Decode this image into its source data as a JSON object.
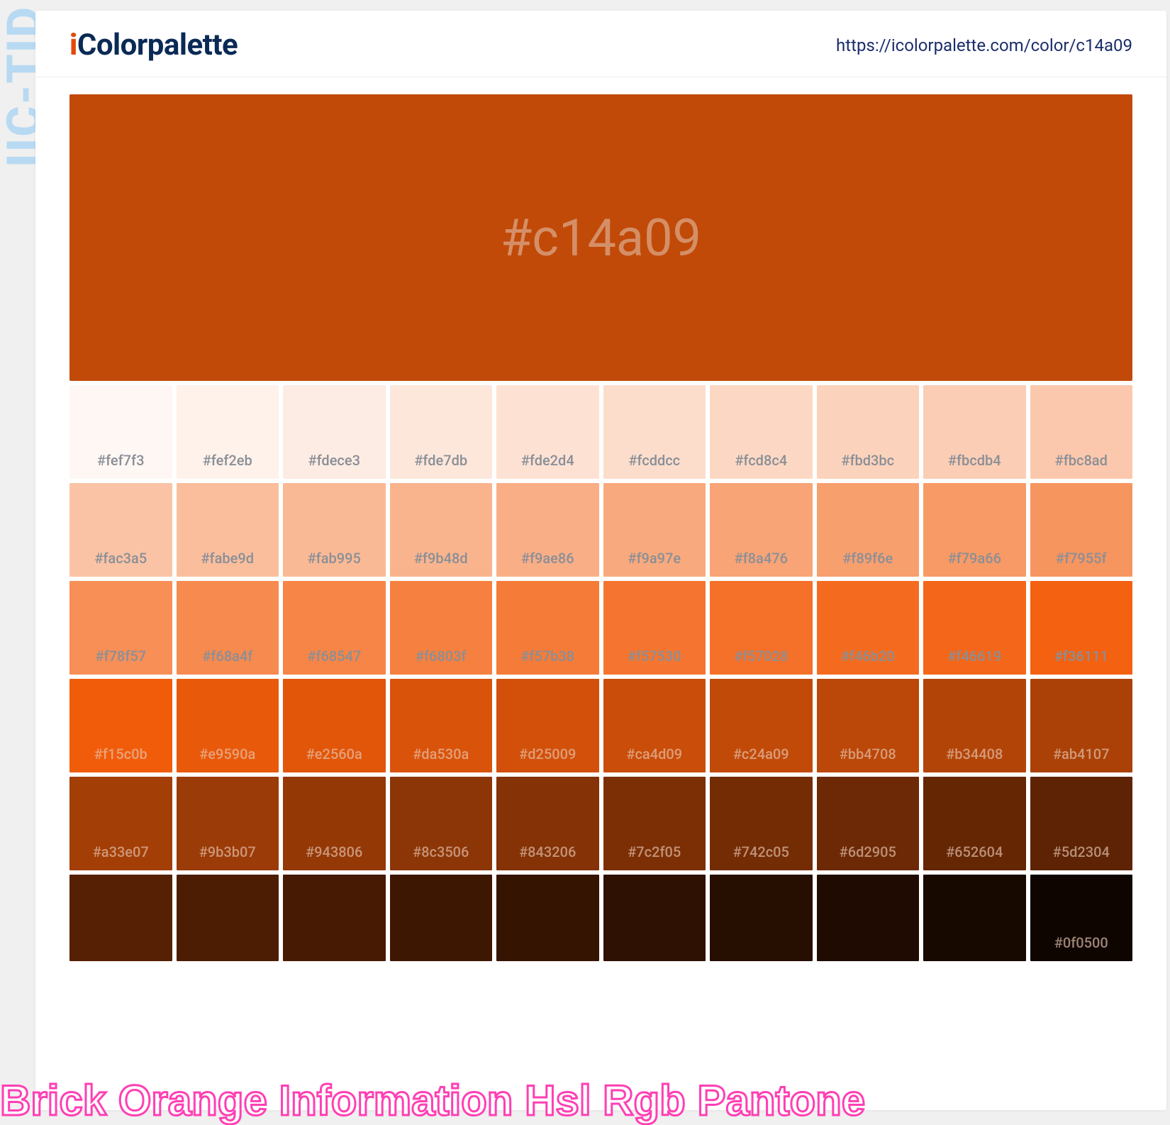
{
  "side_label": "IIC-TID",
  "logo": {
    "accent": "i",
    "rest": "Colorpalette"
  },
  "url": "https://icolorpalette.com/color/c14a09",
  "hero": {
    "label": "#c14a09",
    "bg": "#c14a09",
    "text_color": "rgba(230,200,180,0.55)"
  },
  "swatch_label_light": "#8a8f97",
  "swatch_label_dark": "rgba(230,200,180,0.65)",
  "grid": {
    "rows": [
      [
        {
          "hex": "#fef7f3",
          "label": "#fef7f3",
          "dark": false
        },
        {
          "hex": "#fef2eb",
          "label": "#fef2eb",
          "dark": false
        },
        {
          "hex": "#fdece3",
          "label": "#fdece3",
          "dark": false
        },
        {
          "hex": "#fde7db",
          "label": "#fde7db",
          "dark": false
        },
        {
          "hex": "#fde2d4",
          "label": "#fde2d4",
          "dark": false
        },
        {
          "hex": "#fcddcc",
          "label": "#fcddcc",
          "dark": false
        },
        {
          "hex": "#fcd8c4",
          "label": "#fcd8c4",
          "dark": false
        },
        {
          "hex": "#fbd3bc",
          "label": "#fbd3bc",
          "dark": false
        },
        {
          "hex": "#fbcdb4",
          "label": "#fbcdb4",
          "dark": false
        },
        {
          "hex": "#fbc8ad",
          "label": "#fbc8ad",
          "dark": false
        }
      ],
      [
        {
          "hex": "#fac3a5",
          "label": "#fac3a5",
          "dark": false
        },
        {
          "hex": "#fabe9d",
          "label": "#fabe9d",
          "dark": false
        },
        {
          "hex": "#fab995",
          "label": "#fab995",
          "dark": false
        },
        {
          "hex": "#f9b48d",
          "label": "#f9b48d",
          "dark": false
        },
        {
          "hex": "#f9ae86",
          "label": "#f9ae86",
          "dark": false
        },
        {
          "hex": "#f9a97e",
          "label": "#f9a97e",
          "dark": false
        },
        {
          "hex": "#f8a476",
          "label": "#f8a476",
          "dark": false
        },
        {
          "hex": "#f89f6e",
          "label": "#f89f6e",
          "dark": false
        },
        {
          "hex": "#f79a66",
          "label": "#f79a66",
          "dark": false
        },
        {
          "hex": "#f7955f",
          "label": "#f7955f",
          "dark": false
        }
      ],
      [
        {
          "hex": "#f78f57",
          "label": "#f78f57",
          "dark": false
        },
        {
          "hex": "#f68a4f",
          "label": "#f68a4f",
          "dark": false
        },
        {
          "hex": "#f68547",
          "label": "#f68547",
          "dark": false
        },
        {
          "hex": "#f6803f",
          "label": "#f6803f",
          "dark": false
        },
        {
          "hex": "#f57b38",
          "label": "#f57b38",
          "dark": false
        },
        {
          "hex": "#f57530",
          "label": "#f57530",
          "dark": false
        },
        {
          "hex": "#f57028",
          "label": "#f57028",
          "dark": false
        },
        {
          "hex": "#f46b20",
          "label": "#f46b20",
          "dark": false
        },
        {
          "hex": "#f46619",
          "label": "#f46619",
          "dark": false
        },
        {
          "hex": "#f36111",
          "label": "#f36111",
          "dark": false
        }
      ],
      [
        {
          "hex": "#f15c0b",
          "label": "#f15c0b",
          "dark": true
        },
        {
          "hex": "#e9590a",
          "label": "#e9590a",
          "dark": true
        },
        {
          "hex": "#e2560a",
          "label": "#e2560a",
          "dark": true
        },
        {
          "hex": "#da530a",
          "label": "#da530a",
          "dark": true
        },
        {
          "hex": "#d25009",
          "label": "#d25009",
          "dark": true
        },
        {
          "hex": "#ca4d09",
          "label": "#ca4d09",
          "dark": true
        },
        {
          "hex": "#c24a09",
          "label": "#c24a09",
          "dark": true
        },
        {
          "hex": "#bb4708",
          "label": "#bb4708",
          "dark": true
        },
        {
          "hex": "#b34408",
          "label": "#b34408",
          "dark": true
        },
        {
          "hex": "#ab4107",
          "label": "#ab4107",
          "dark": true
        }
      ],
      [
        {
          "hex": "#a33e07",
          "label": "#a33e07",
          "dark": true
        },
        {
          "hex": "#9b3b07",
          "label": "#9b3b07",
          "dark": true
        },
        {
          "hex": "#943806",
          "label": "#943806",
          "dark": true
        },
        {
          "hex": "#8c3506",
          "label": "#8c3506",
          "dark": true
        },
        {
          "hex": "#843206",
          "label": "#843206",
          "dark": true
        },
        {
          "hex": "#7c2f05",
          "label": "#7c2f05",
          "dark": true
        },
        {
          "hex": "#742c05",
          "label": "#742c05",
          "dark": true
        },
        {
          "hex": "#6d2905",
          "label": "#6d2905",
          "dark": true
        },
        {
          "hex": "#652604",
          "label": "#652604",
          "dark": true
        },
        {
          "hex": "#5d2304",
          "label": "#5d2304",
          "dark": true
        }
      ],
      [
        {
          "hex": "#552003",
          "label": "",
          "dark": true,
          "short": true
        },
        {
          "hex": "#4d1d03",
          "label": "",
          "dark": true,
          "short": true
        },
        {
          "hex": "#461a03",
          "label": "",
          "dark": true,
          "short": true
        },
        {
          "hex": "#3e1702",
          "label": "",
          "dark": true,
          "short": true
        },
        {
          "hex": "#361402",
          "label": "",
          "dark": true,
          "short": true
        },
        {
          "hex": "#2e1102",
          "label": "",
          "dark": true,
          "short": true
        },
        {
          "hex": "#260e01",
          "label": "",
          "dark": true,
          "short": true
        },
        {
          "hex": "#1f0b01",
          "label": "",
          "dark": true,
          "short": true
        },
        {
          "hex": "#170800",
          "label": "",
          "dark": true,
          "short": true
        },
        {
          "hex": "#0f0500",
          "label": "#0f0500",
          "dark": true,
          "short": true
        }
      ]
    ]
  },
  "caption": "Brick Orange Information Hsl Rgb Pantone"
}
